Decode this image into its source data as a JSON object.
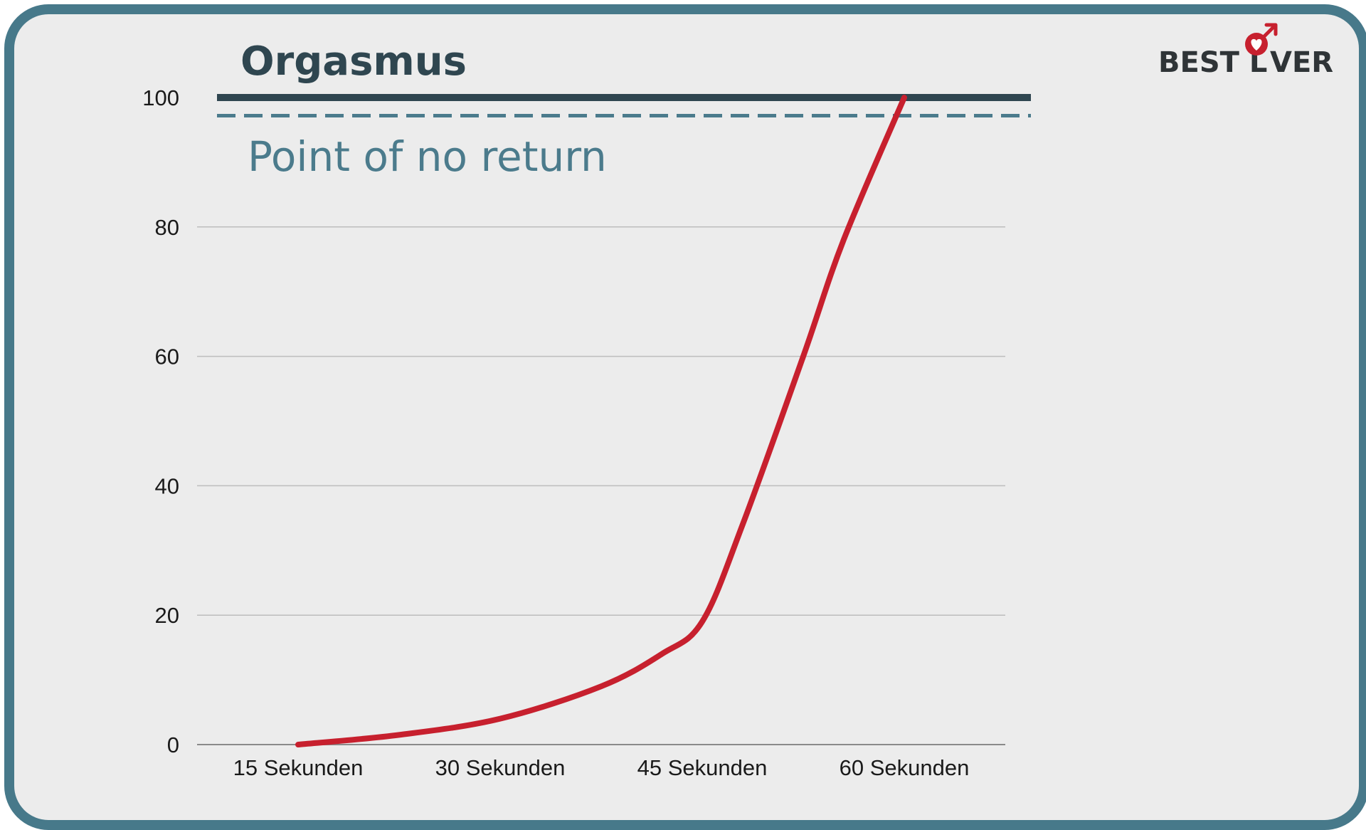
{
  "brand": {
    "logo_text_left": "BEST L",
    "logo_text_right": "VER",
    "logo_icon": "heart-male-symbol-icon",
    "accent_color": "#c7202e",
    "dark_color": "#2f3437"
  },
  "colors": {
    "frame": "#47798a",
    "background": "#ececec",
    "curve": "#c7202e",
    "orgasm_line": "#2f4650",
    "ponr_line": "#4b7b8c",
    "grid": "#bdbdbd"
  },
  "chart_data": {
    "type": "line",
    "title": "",
    "xlabel": "",
    "ylabel": "",
    "categories": [
      "15 Sekunden",
      "30 Sekunden",
      "45 Sekunden",
      "60 Sekunden"
    ],
    "ylim": [
      0,
      100
    ],
    "yticks": [
      "0",
      "20",
      "40",
      "60",
      "80",
      "100"
    ],
    "grid": true,
    "series": [
      {
        "x": [
          0,
          0.5,
          1,
          1.5,
          1.8,
          2,
          2.2,
          2.5,
          2.7,
          3
        ],
        "y": [
          0,
          1.5,
          4,
          9,
          14,
          19,
          34,
          60,
          78,
          100
        ]
      }
    ],
    "annotations": [
      {
        "label": "Orgasmus",
        "y": 100,
        "style": "solid"
      },
      {
        "label": "Point of no return",
        "y": 97.2,
        "style": "dashed"
      }
    ]
  }
}
